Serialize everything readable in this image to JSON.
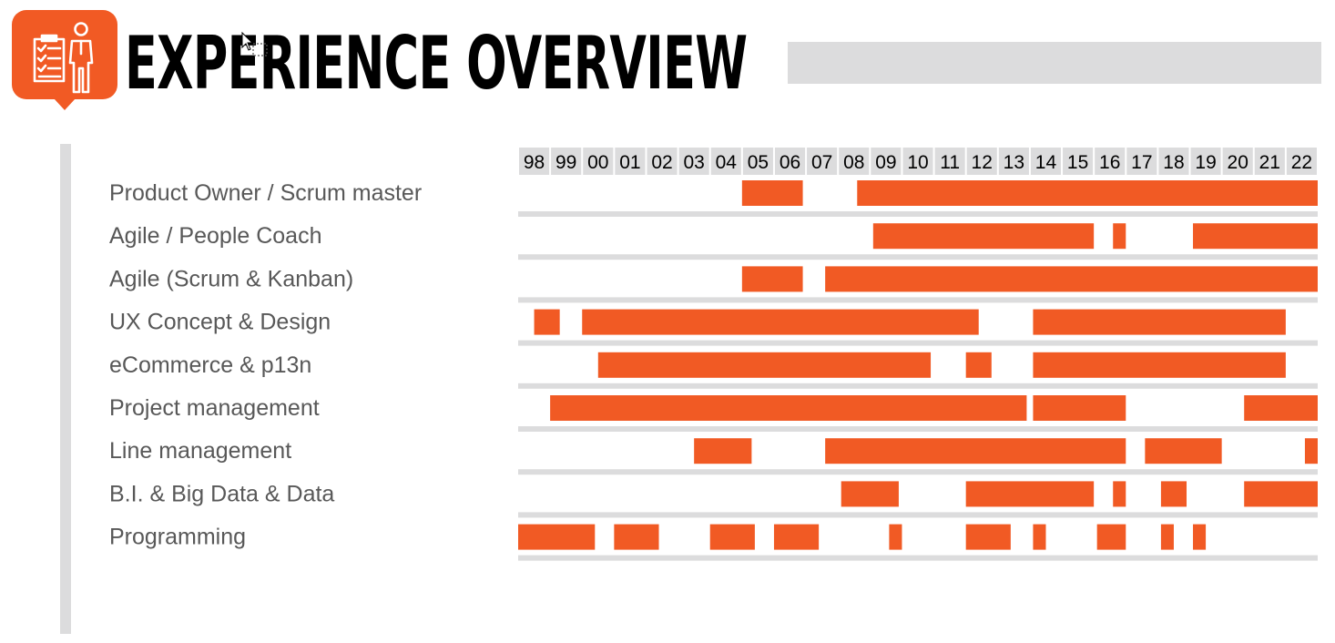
{
  "header": {
    "title": "EXPERIENCE OVERVIEW",
    "logo_icon": "person-with-checklist-icon",
    "accent_color": "#f15a24",
    "bar_color": "#dcdcdd"
  },
  "chart_data": {
    "type": "gantt",
    "title": "",
    "xlabel": "",
    "ylabel": "",
    "x_axis_position": "top",
    "x_ticks": [
      "98",
      "99",
      "00",
      "01",
      "02",
      "03",
      "04",
      "05",
      "06",
      "07",
      "08",
      "09",
      "10",
      "11",
      "12",
      "13",
      "14",
      "15",
      "16",
      "17",
      "18",
      "19",
      "20",
      "21",
      "22"
    ],
    "xlim": [
      1998,
      2023
    ],
    "bar_color": "#f15a24",
    "separator_color": "#dcdcdd",
    "rows": [
      {
        "label": "Product Owner / Scrum master",
        "periods": [
          [
            2005.0,
            2006.9
          ],
          [
            2008.6,
            2023.0
          ]
        ]
      },
      {
        "label": "Agile / People Coach",
        "periods": [
          [
            2009.1,
            2016.0
          ],
          [
            2016.6,
            2017.0
          ],
          [
            2019.1,
            2023.0
          ]
        ]
      },
      {
        "label": "Agile (Scrum & Kanban)",
        "periods": [
          [
            2005.0,
            2006.9
          ],
          [
            2007.6,
            2023.0
          ]
        ]
      },
      {
        "label": "UX Concept & Design",
        "periods": [
          [
            1998.5,
            1999.3
          ],
          [
            2000.0,
            2012.4
          ],
          [
            2014.1,
            2022.0
          ]
        ]
      },
      {
        "label": "eCommerce & p13n",
        "periods": [
          [
            2000.5,
            2010.9
          ],
          [
            2012.0,
            2012.8
          ],
          [
            2014.1,
            2022.0
          ]
        ]
      },
      {
        "label": "Project management",
        "periods": [
          [
            1999.0,
            2013.9
          ],
          [
            2014.1,
            2017.0
          ],
          [
            2020.7,
            2023.0
          ]
        ]
      },
      {
        "label": "Line management",
        "periods": [
          [
            2003.5,
            2005.3
          ],
          [
            2007.6,
            2017.0
          ],
          [
            2017.6,
            2020.0
          ],
          [
            2022.6,
            2023.0
          ]
        ]
      },
      {
        "label": "B.I. & Big Data & Data",
        "periods": [
          [
            2008.1,
            2009.9
          ],
          [
            2012.0,
            2016.0
          ],
          [
            2016.6,
            2017.0
          ],
          [
            2018.1,
            2018.9
          ],
          [
            2020.7,
            2023.0
          ]
        ]
      },
      {
        "label": "Programming",
        "periods": [
          [
            1998.0,
            2000.4
          ],
          [
            2001.0,
            2002.4
          ],
          [
            2004.0,
            2005.4
          ],
          [
            2006.0,
            2007.4
          ],
          [
            2009.6,
            2010.0
          ],
          [
            2012.0,
            2013.4
          ],
          [
            2014.1,
            2014.5
          ],
          [
            2016.1,
            2017.0
          ],
          [
            2018.1,
            2018.5
          ],
          [
            2019.1,
            2019.5
          ]
        ]
      }
    ]
  }
}
